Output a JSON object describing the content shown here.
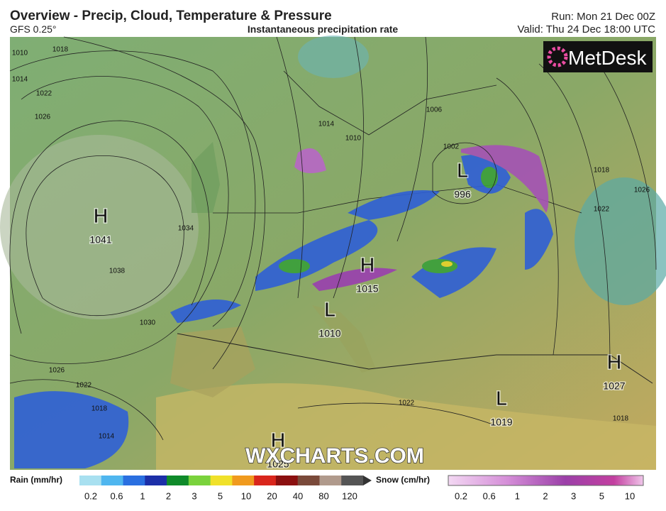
{
  "header": {
    "title": "Overview - Precip, Cloud, Temperature & Pressure",
    "model": "GFS 0.25°",
    "subtitle": "Instantaneous precipitation rate",
    "run": "Run: Mon 21 Dec 00Z",
    "valid": "Valid: Thu 24 Dec 18:00 UTC"
  },
  "logo": "MetDesk",
  "watermark": "WXCHARTS.COM",
  "pressure_centers": [
    {
      "type": "H",
      "value": "1041"
    },
    {
      "type": "L",
      "value": "996"
    },
    {
      "type": "H",
      "value": "1015"
    },
    {
      "type": "L",
      "value": "1010"
    },
    {
      "type": "H",
      "value": "1027"
    },
    {
      "type": "L",
      "value": "1019"
    },
    {
      "type": "H",
      "value": "1025"
    }
  ],
  "isobar_labels": [
    "1010",
    "1014",
    "1018",
    "1022",
    "1026",
    "1034",
    "1038",
    "1030",
    "1026",
    "1022",
    "1018",
    "1014",
    "1014",
    "1010",
    "1006",
    "1002",
    "1018",
    "1022",
    "1026",
    "1022",
    "1018"
  ],
  "legend": {
    "rain": {
      "label": "Rain (mm/hr)",
      "ticks": [
        "0.2",
        "0.6",
        "1",
        "2",
        "3",
        "5",
        "10",
        "20",
        "40",
        "80",
        "120"
      ]
    },
    "snow": {
      "label": "Snow (cm/hr)",
      "ticks": [
        "0.2",
        "0.6",
        "1",
        "2",
        "3",
        "5",
        "10"
      ]
    }
  }
}
